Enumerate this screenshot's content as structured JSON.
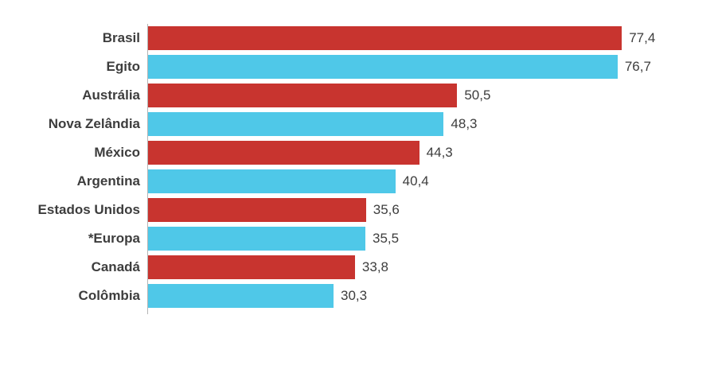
{
  "chart_data": {
    "type": "bar",
    "orientation": "horizontal",
    "title": "",
    "xlabel": "",
    "ylabel": "",
    "categories": [
      "Brasil",
      "Egito",
      "Austrália",
      "Nova Zelândia",
      "México",
      "Argentina",
      "Estados Unidos",
      "*Europa",
      "Canadá",
      "Colômbia"
    ],
    "values": [
      77.4,
      76.7,
      50.5,
      48.3,
      44.3,
      40.4,
      35.6,
      35.5,
      33.8,
      30.3
    ],
    "value_labels": [
      "77,4",
      "76,7",
      "50,5",
      "48,3",
      "44,3",
      "40,4",
      "35,6",
      "35,5",
      "33,8",
      "30,3"
    ],
    "bar_colors": [
      "#c8342f",
      "#4fc8e8",
      "#c8342f",
      "#4fc8e8",
      "#c8342f",
      "#4fc8e8",
      "#c8342f",
      "#4fc8e8",
      "#c8342f",
      "#4fc8e8"
    ],
    "xlim": [
      0,
      80
    ],
    "grid": false,
    "legend": false,
    "decimal_separator": ","
  },
  "colors": {
    "red_series": "#c8342f",
    "cyan_series": "#4fc8e8",
    "label_text": "#3d3d3d",
    "axis_line": "#b5b5b5",
    "background": "#ffffff"
  }
}
